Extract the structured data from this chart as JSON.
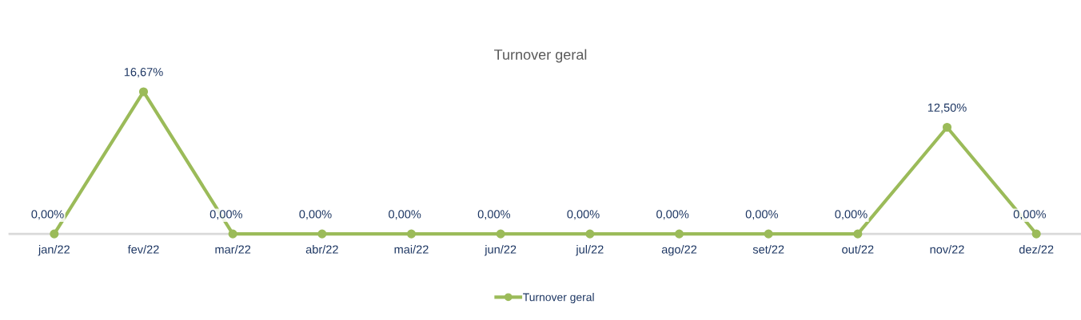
{
  "chart_data": {
    "type": "line",
    "title": "Turnover geral",
    "categories": [
      "jan/22",
      "fev/22",
      "mar/22",
      "abr/22",
      "mai/22",
      "jun/22",
      "jul/22",
      "ago/22",
      "set/22",
      "out/22",
      "nov/22",
      "dez/22"
    ],
    "series": [
      {
        "name": "Turnover geral",
        "color": "#9bbb59",
        "values": [
          0,
          16.67,
          0,
          0,
          0,
          0,
          0,
          0,
          0,
          0,
          12.5,
          0
        ],
        "value_labels": [
          "0,00%",
          "16,67%",
          "0,00%",
          "0,00%",
          "0,00%",
          "0,00%",
          "0,00%",
          "0,00%",
          "0,00%",
          "0,00%",
          "12,50%",
          "0,00%"
        ]
      }
    ],
    "marker": "circle",
    "line_style": "solid",
    "grid": false,
    "legend": "bottom"
  }
}
